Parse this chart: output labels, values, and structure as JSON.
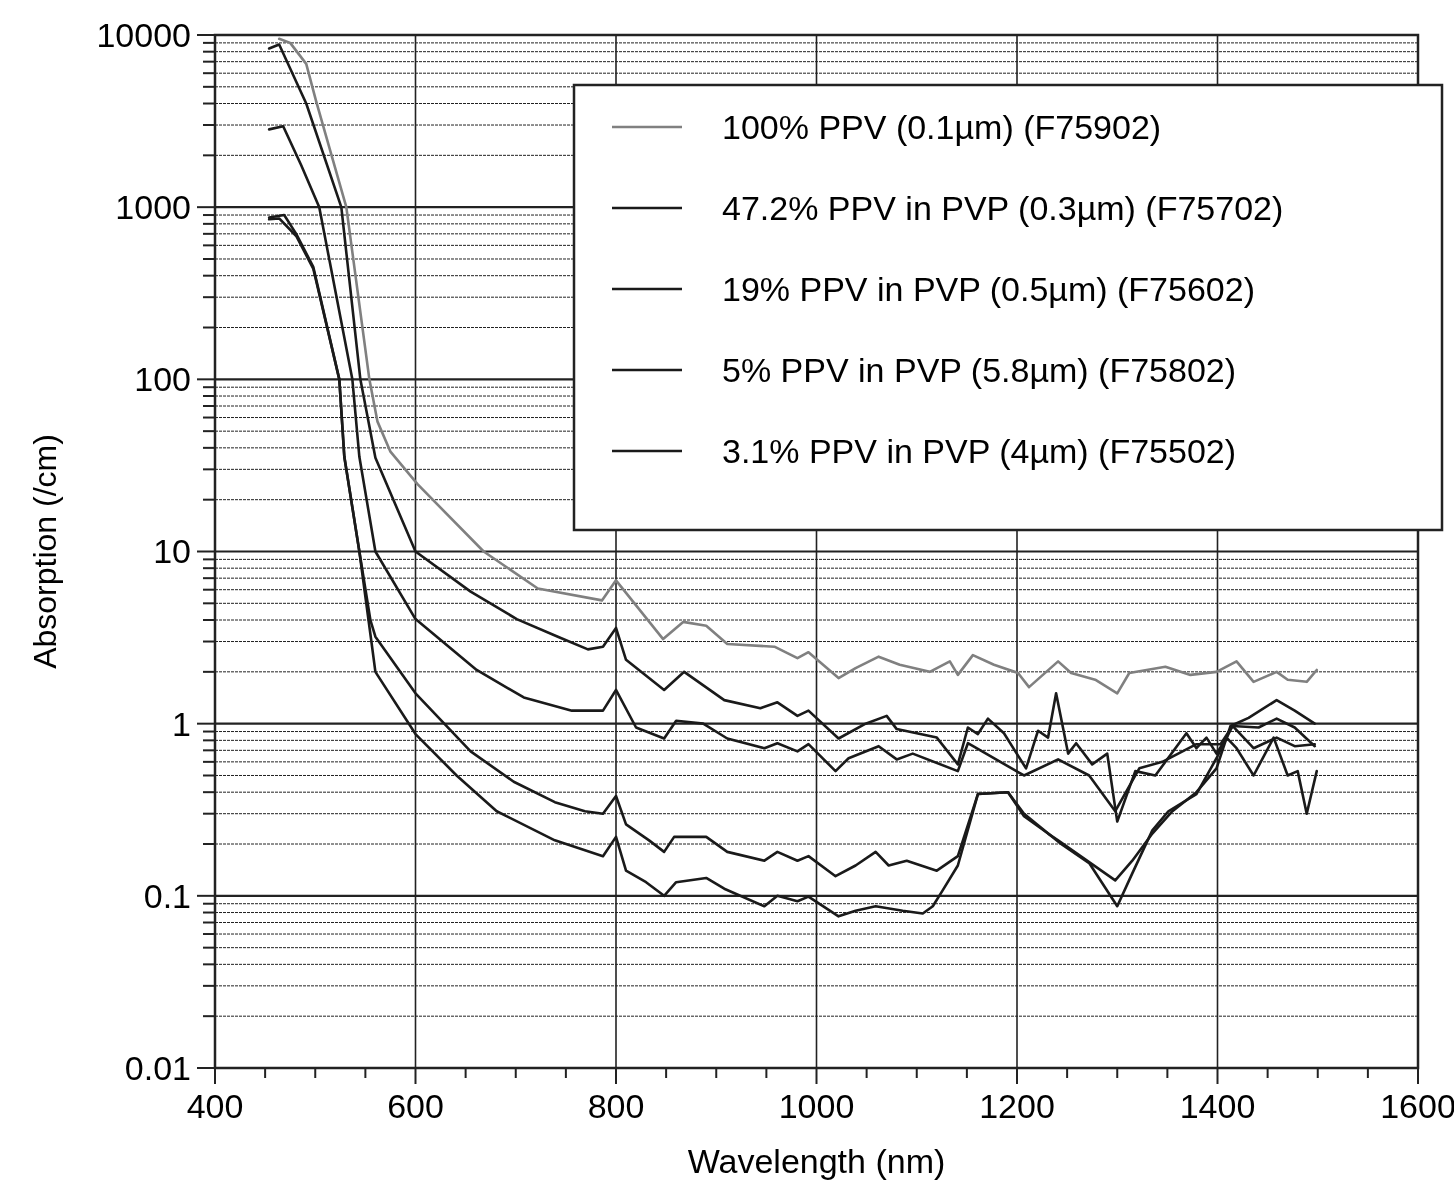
{
  "chart_data": {
    "type": "line",
    "xlabel": "Wavelength (nm)",
    "ylabel": "Absorption (/cm)",
    "log": "y",
    "grid": true,
    "legend": "top right",
    "xlim": [
      400,
      1600
    ],
    "ylim": [
      0.01,
      10000
    ],
    "xticks": [
      400,
      {
        "value": 450,
        "label": null
      },
      {
        "value": 500,
        "label": null
      },
      {
        "value": 550,
        "label": null
      },
      600,
      {
        "value": 650,
        "label": null
      },
      {
        "value": 700,
        "label": null
      },
      {
        "value": 750,
        "label": null
      },
      800,
      {
        "value": 850,
        "label": null
      },
      {
        "value": 900,
        "label": null
      },
      {
        "value": 950,
        "label": null
      },
      1000,
      {
        "value": 1050,
        "label": null
      },
      {
        "value": 1100,
        "label": null
      },
      {
        "value": 1150,
        "label": null
      },
      1200,
      {
        "value": 1250,
        "label": null
      },
      {
        "value": 1300,
        "label": null
      },
      {
        "value": 1350,
        "label": null
      },
      1400,
      {
        "value": 1450,
        "label": null
      },
      {
        "value": 1500,
        "label": null
      },
      {
        "value": 1550,
        "label": null
      },
      1600
    ],
    "yticks": [
      0.01,
      {
        "value": 0.02,
        "label": null
      },
      {
        "value": 0.03,
        "label": null
      },
      {
        "value": 0.04,
        "label": null
      },
      {
        "value": 0.05,
        "label": null
      },
      {
        "value": 0.06,
        "label": null
      },
      {
        "value": 0.07,
        "label": null
      },
      {
        "value": 0.08,
        "label": null
      },
      {
        "value": 0.09,
        "label": null
      },
      0.1,
      {
        "value": 0.2,
        "label": null
      },
      {
        "value": 0.3,
        "label": null
      },
      {
        "value": 0.4,
        "label": null
      },
      {
        "value": 0.5,
        "label": null
      },
      {
        "value": 0.6,
        "label": null
      },
      {
        "value": 0.7,
        "label": null
      },
      {
        "value": 0.8,
        "label": null
      },
      {
        "value": 0.9,
        "label": null
      },
      1,
      {
        "value": 2,
        "label": null
      },
      {
        "value": 3,
        "label": null
      },
      {
        "value": 4,
        "label": null
      },
      {
        "value": 5,
        "label": null
      },
      {
        "value": 6,
        "label": null
      },
      {
        "value": 7,
        "label": null
      },
      {
        "value": 8,
        "label": null
      },
      {
        "value": 9,
        "label": null
      },
      10,
      {
        "value": 20,
        "label": null
      },
      {
        "value": 30,
        "label": null
      },
      {
        "value": 40,
        "label": null
      },
      {
        "value": 50,
        "label": null
      },
      {
        "value": 60,
        "label": null
      },
      {
        "value": 70,
        "label": null
      },
      {
        "value": 80,
        "label": null
      },
      {
        "value": 90,
        "label": null
      },
      100,
      {
        "value": 200,
        "label": null
      },
      {
        "value": 300,
        "label": null
      },
      {
        "value": 400,
        "label": null
      },
      {
        "value": 500,
        "label": null
      },
      {
        "value": 600,
        "label": null
      },
      {
        "value": 700,
        "label": null
      },
      {
        "value": 800,
        "label": null
      },
      {
        "value": 900,
        "label": null
      },
      1000,
      {
        "value": 2000,
        "label": null
      },
      {
        "value": 3000,
        "label": null
      },
      {
        "value": 4000,
        "label": null
      },
      {
        "value": 5000,
        "label": null
      },
      {
        "value": 6000,
        "label": null
      },
      {
        "value": 7000,
        "label": null
      },
      {
        "value": 8000,
        "label": null
      },
      {
        "value": 9000,
        "label": null
      },
      10000
    ],
    "series": [
      {
        "name": "100% PPV (0.1µm) (F75902)",
        "color": "#808080",
        "x": [
          464,
          475,
          491,
          501,
          531,
          554,
          562,
          575,
          602,
          668,
          722,
          786,
          800,
          847,
          867,
          890,
          911,
          958,
          981,
          992,
          1022,
          1039,
          1062,
          1083,
          1113,
          1133,
          1141,
          1156,
          1177,
          1201,
          1212,
          1241,
          1254,
          1278,
          1300,
          1312,
          1348,
          1373,
          1399,
          1419,
          1436,
          1459,
          1470,
          1489,
          1499
        ],
        "values": [
          9500,
          9000,
          6800,
          4100,
          1000,
          100,
          57,
          38,
          24.6,
          10,
          6.1,
          5.2,
          6.8,
          3.1,
          3.9,
          3.7,
          2.9,
          2.8,
          2.4,
          2.6,
          1.84,
          2.1,
          2.45,
          2.2,
          2.0,
          2.3,
          1.92,
          2.5,
          2.2,
          1.97,
          1.63,
          2.3,
          1.97,
          1.8,
          1.5,
          1.97,
          2.14,
          1.92,
          2.0,
          2.3,
          1.75,
          2.0,
          1.8,
          1.75,
          2.05
        ]
      },
      {
        "name": "47.2% PPV in PVP (0.3µm) (F75702)",
        "color": "#1a1a1a",
        "x": [
          454,
          464,
          491,
          526,
          545,
          560,
          600,
          655,
          701,
          742,
          772,
          787,
          800,
          810,
          848,
          868,
          908,
          944,
          961,
          981,
          992,
          1022,
          1049,
          1070,
          1080,
          1120,
          1141,
          1151,
          1161,
          1171,
          1187,
          1209,
          1221,
          1231,
          1239,
          1251,
          1259,
          1275,
          1290,
          1300,
          1318,
          1338,
          1369,
          1379,
          1389,
          1399,
          1409,
          1419,
          1436,
          1456,
          1470,
          1480,
          1489,
          1499
        ],
        "values": [
          8350,
          8800,
          4000,
          1000,
          100,
          35,
          10,
          5.85,
          4.05,
          3.2,
          2.7,
          2.8,
          3.6,
          2.35,
          1.57,
          2.0,
          1.37,
          1.23,
          1.33,
          1.11,
          1.19,
          0.82,
          1.0,
          1.11,
          0.93,
          0.83,
          0.58,
          0.95,
          0.87,
          1.07,
          0.88,
          0.55,
          0.91,
          0.83,
          1.5,
          0.67,
          0.77,
          0.58,
          0.67,
          0.27,
          0.53,
          0.5,
          0.88,
          0.72,
          0.83,
          0.67,
          0.83,
          0.72,
          0.5,
          0.83,
          0.5,
          0.53,
          0.3,
          0.53
        ]
      },
      {
        "name": "19% PPV in PVP (0.5µm) (F75602)",
        "color": "#1a1a1a",
        "x": [
          454,
          468,
          486,
          504,
          537,
          544,
          560,
          600,
          661,
          708,
          756,
          787,
          800,
          820,
          848,
          860,
          887,
          911,
          948,
          961,
          981,
          992,
          1019,
          1032,
          1062,
          1080,
          1096,
          1141,
          1151,
          1207,
          1241,
          1272,
          1298,
          1322,
          1345,
          1379,
          1403,
          1415,
          1436,
          1459,
          1477,
          1497
        ],
        "values": [
          2830,
          2950,
          1750,
          1000,
          100,
          35.5,
          10,
          4.05,
          2.05,
          1.42,
          1.19,
          1.19,
          1.57,
          0.95,
          0.82,
          1.04,
          1.0,
          0.82,
          0.72,
          0.77,
          0.69,
          0.76,
          0.53,
          0.63,
          0.74,
          0.62,
          0.67,
          0.53,
          0.77,
          0.5,
          0.62,
          0.5,
          0.31,
          0.55,
          0.6,
          0.76,
          0.76,
          0.97,
          0.72,
          0.83,
          0.74,
          0.76
        ]
      },
      {
        "name": "5% PPV in PVP (5.8µm) (F75802)",
        "color": "#1a1a1a",
        "x": [
          454,
          469,
          481,
          498,
          524,
          529,
          544,
          555,
          560,
          600,
          655,
          698,
          739,
          769,
          787,
          800,
          810,
          833,
          848,
          858,
          890,
          911,
          948,
          961,
          981,
          992,
          1019,
          1039,
          1059,
          1072,
          1090,
          1120,
          1141,
          1161,
          1191,
          1207,
          1231,
          1241,
          1298,
          1315,
          1335,
          1355,
          1379,
          1399,
          1413,
          1431,
          1459,
          1477,
          1497
        ],
        "values": [
          870,
          900,
          700,
          450,
          100,
          35.5,
          10,
          4,
          3.2,
          1.5,
          0.69,
          0.46,
          0.35,
          0.31,
          0.3,
          0.38,
          0.26,
          0.21,
          0.18,
          0.22,
          0.22,
          0.18,
          0.16,
          0.18,
          0.16,
          0.17,
          0.13,
          0.15,
          0.18,
          0.15,
          0.16,
          0.14,
          0.17,
          0.39,
          0.4,
          0.29,
          0.23,
          0.21,
          0.123,
          0.16,
          0.23,
          0.31,
          0.4,
          0.55,
          0.97,
          1.08,
          1.37,
          1.19,
          1.0
        ]
      },
      {
        "name": "3.1% PPV in PVP (4µm) (F75502)",
        "color": "#1a1a1a",
        "x": [
          454,
          464,
          481,
          498,
          524,
          529,
          544,
          556,
          560,
          600,
          641,
          681,
          739,
          787,
          800,
          810,
          830,
          848,
          860,
          890,
          908,
          948,
          961,
          981,
          992,
          1022,
          1039,
          1059,
          1086,
          1106,
          1116,
          1126,
          1141,
          1161,
          1191,
          1207,
          1244,
          1272,
          1300,
          1315,
          1335,
          1351,
          1379,
          1399,
          1415,
          1441,
          1459,
          1477,
          1497
        ],
        "values": [
          850,
          860,
          680,
          440,
          100,
          35.5,
          10,
          3,
          2.0,
          0.87,
          0.5,
          0.31,
          0.21,
          0.17,
          0.22,
          0.14,
          0.12,
          0.1,
          0.12,
          0.127,
          0.11,
          0.087,
          0.1,
          0.093,
          0.099,
          0.076,
          0.082,
          0.087,
          0.082,
          0.079,
          0.087,
          0.108,
          0.15,
          0.39,
          0.4,
          0.3,
          0.2,
          0.155,
          0.087,
          0.135,
          0.24,
          0.31,
          0.39,
          0.63,
          0.97,
          0.95,
          1.07,
          0.95,
          0.74
        ]
      }
    ]
  }
}
